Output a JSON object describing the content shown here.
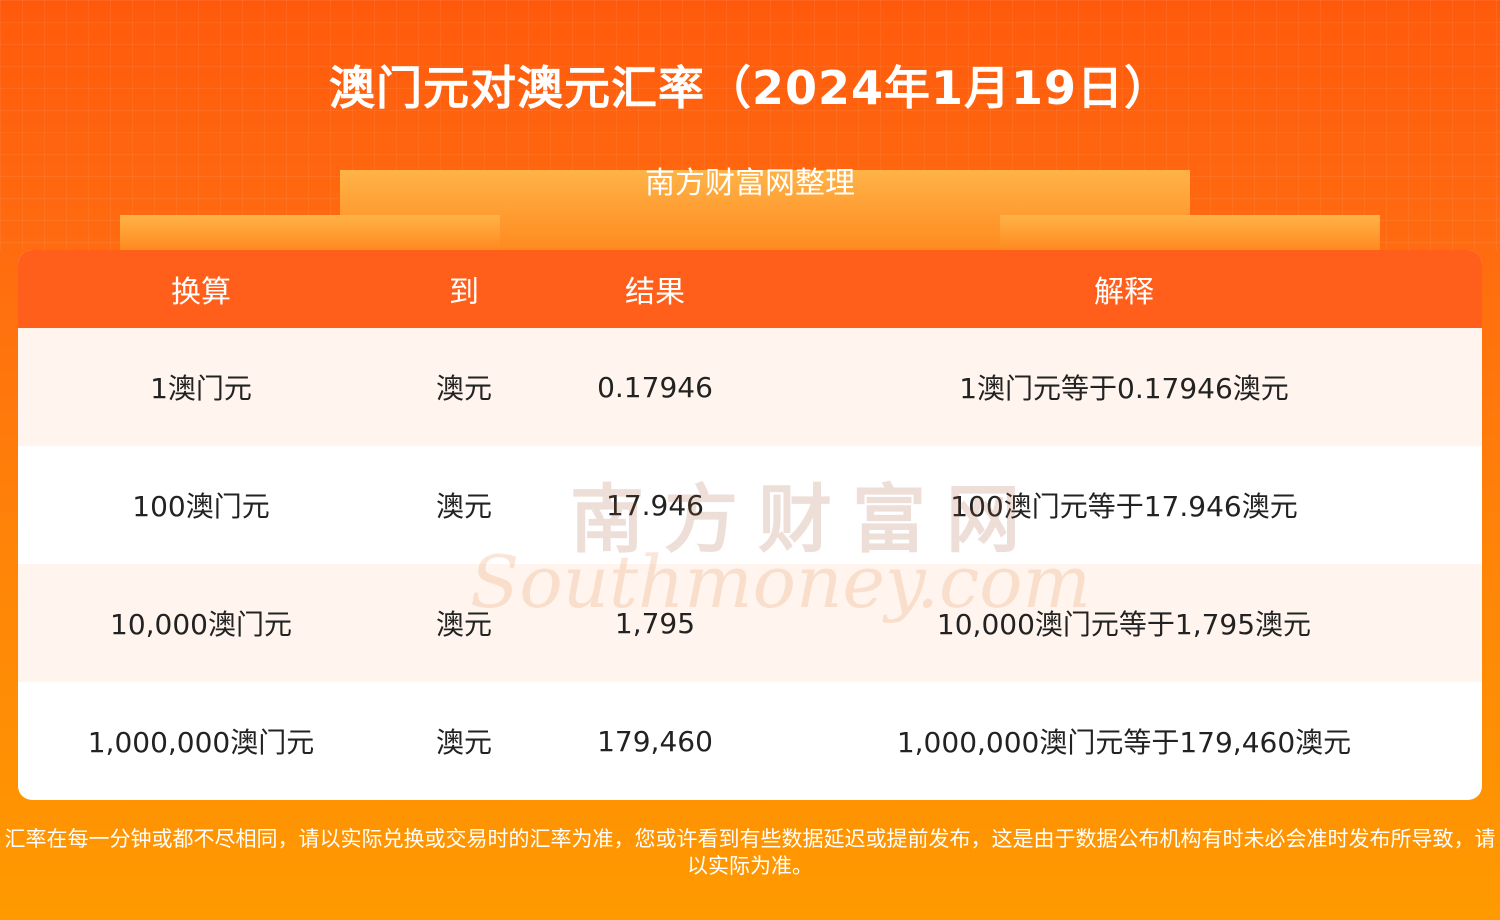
{
  "header": {
    "title": "澳门元对澳元汇率（2024年1月19日）",
    "subtitle": "南方财富网整理"
  },
  "table": {
    "columns": [
      "换算",
      "到",
      "结果",
      "解释"
    ],
    "rows": [
      [
        "1澳门元",
        "澳元",
        "0.17946",
        "1澳门元等于0.17946澳元"
      ],
      [
        "100澳门元",
        "澳元",
        "17.946",
        "100澳门元等于17.946澳元"
      ],
      [
        "10,000澳门元",
        "澳元",
        "1,795",
        "10,000澳门元等于1,795澳元"
      ],
      [
        "1,000,000澳门元",
        "澳元",
        "179,460",
        "1,000,000澳门元等于179,460澳元"
      ]
    ]
  },
  "watermark": {
    "cn": "南方财富网",
    "en": "Southmoney.com"
  },
  "footer": {
    "note": "汇率在每一分钟或都不尽相同，请以实际兑换或交易时的汇率为准，您或许看到有些数据延迟或提前发布，这是由于数据公布机构有时未必会准时发布所导致，请以实际为准。"
  },
  "colors": {
    "header_row": "#ff5f1a",
    "alt_row": "#fff5ee",
    "background_top": "#ff5a0c",
    "background_bottom": "#ff9a00"
  }
}
